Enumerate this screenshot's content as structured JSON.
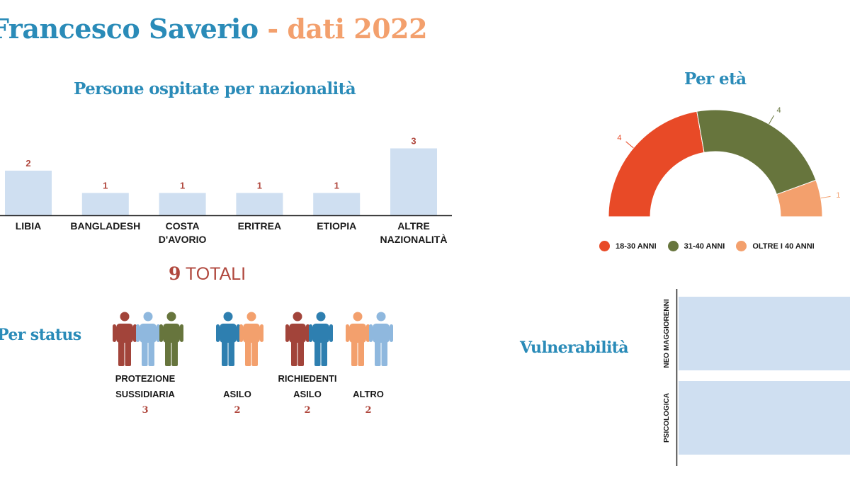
{
  "header": {
    "title_name": "Francesco Saverio",
    "title_sep": " - ",
    "title_year": "dati 2022"
  },
  "colors": {
    "title_blue": "#2a8bb8",
    "accent_orange": "#f3a06d",
    "bar_fill": "#cfdff1",
    "red": "#e84a27",
    "green": "#67753d",
    "brown_red": "#a2443a",
    "light_blue": "#8fb8de",
    "teal_blue": "#2e7fb0",
    "orange": "#f3a06d"
  },
  "chart_data": [
    {
      "type": "bar",
      "title": "Persone ospitate per nazionalità",
      "categories": [
        "LIBIA",
        "BANGLADESH",
        "COSTA D'AVORIO",
        "ERITREA",
        "ETIOPIA",
        "ALTRE NAZIONALITÀ"
      ],
      "category_lines": [
        [
          "LIBIA"
        ],
        [
          "BANGLADESH"
        ],
        [
          "COSTA",
          "D'AVORIO"
        ],
        [
          "ERITREA"
        ],
        [
          "ETIOPIA"
        ],
        [
          "ALTRE",
          "NAZIONALITÀ"
        ]
      ],
      "values": [
        2,
        1,
        1,
        1,
        1,
        3
      ],
      "ylim": [
        0,
        3
      ]
    },
    {
      "type": "pie",
      "variant": "half-donut",
      "title": "Per età",
      "labels": [
        "18-30 ANNI",
        "31-40 ANNI",
        "OLTRE I 40 ANNI"
      ],
      "values": [
        4,
        4,
        1
      ],
      "colors": [
        "#e84a27",
        "#67753d",
        "#f3a06d"
      ],
      "legend_position": "bottom"
    },
    {
      "type": "bar",
      "orientation": "horizontal",
      "title": "Vulnerabilità",
      "categories": [
        "NEO MAGGIORENNI",
        "PSICOLOGICA"
      ]
    }
  ],
  "total": {
    "number": "9",
    "label": " TOTALI"
  },
  "status": {
    "title": "Per status",
    "groups": [
      {
        "label": "PROTEZIONE SUSSIDIARIA",
        "value": "3",
        "people": [
          "brown_red",
          "light_blue",
          "green"
        ]
      },
      {
        "label": "ASILO",
        "value": "2",
        "people": [
          "teal_blue",
          "orange"
        ]
      },
      {
        "label": "RICHIEDENTI ASILO",
        "value": "2",
        "people": [
          "brown_red",
          "teal_blue"
        ]
      },
      {
        "label": "ALTRO",
        "value": "2",
        "people": [
          "orange",
          "light_blue"
        ]
      }
    ]
  }
}
